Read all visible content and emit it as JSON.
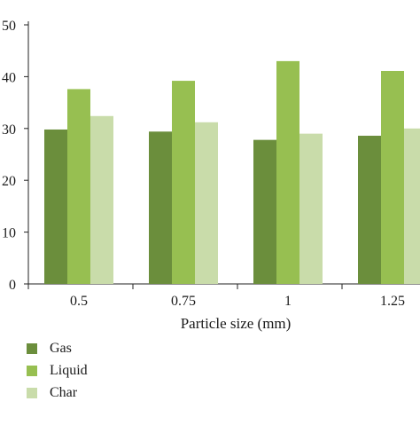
{
  "chart_data": {
    "type": "bar",
    "title": "",
    "xlabel": "Particle size (mm)",
    "ylabel": "",
    "categories": [
      "0.5",
      "0.75",
      "1",
      "1.25"
    ],
    "ylim": [
      0,
      50
    ],
    "yticks": [
      "0",
      "10",
      "20",
      "30",
      "40",
      "50"
    ],
    "grid": false,
    "legend_position": "bottom-left",
    "series": [
      {
        "name": "Gas",
        "color": "#6b8e3c",
        "values": [
          29.8,
          29.4,
          27.8,
          28.6
        ]
      },
      {
        "name": "Liquid",
        "color": "#97bf51",
        "values": [
          37.6,
          39.2,
          43.0,
          41.1
        ]
      },
      {
        "name": "Char",
        "color": "#c9dcaa",
        "values": [
          32.4,
          31.2,
          29.0,
          30.0
        ]
      }
    ]
  }
}
